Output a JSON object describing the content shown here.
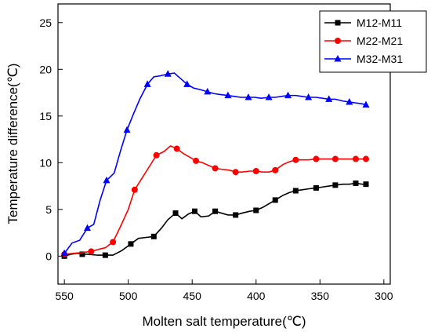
{
  "chart_data": {
    "type": "line",
    "title": "",
    "xlabel": "Molten salt temperature(℃)",
    "ylabel": "Temperature difference(℃)",
    "xlim": [
      555,
      295
    ],
    "ylim": [
      -3,
      27
    ],
    "x_reversed": true,
    "x_ticks": [
      550,
      500,
      450,
      400,
      350,
      300
    ],
    "y_ticks": [
      0,
      5,
      10,
      15,
      20,
      25
    ],
    "grid": false,
    "legend_position": "top-right",
    "series": [
      {
        "name": "M12-M11",
        "color": "#000000",
        "marker": "square",
        "x": [
          550,
          545,
          540,
          536,
          532,
          524,
          518,
          512,
          505,
          498,
          492,
          486,
          480,
          474,
          469,
          463,
          458,
          453,
          448,
          443,
          437,
          432,
          427,
          422,
          416,
          411,
          405,
          400,
          395,
          390,
          385,
          379,
          374,
          369,
          364,
          359,
          353,
          348,
          343,
          338,
          332,
          327,
          322,
          317,
          314
        ],
        "y": [
          0.0,
          0.2,
          0.3,
          0.2,
          0.2,
          0.1,
          0.1,
          0.1,
          0.6,
          1.3,
          1.9,
          2.0,
          2.1,
          3.0,
          3.9,
          4.6,
          4.0,
          4.5,
          4.8,
          4.2,
          4.3,
          4.8,
          4.6,
          4.4,
          4.4,
          4.6,
          4.8,
          4.9,
          5.2,
          5.6,
          6.0,
          6.5,
          6.8,
          7.0,
          7.1,
          7.2,
          7.3,
          7.4,
          7.5,
          7.6,
          7.7,
          7.7,
          7.8,
          7.7,
          7.7
        ]
      },
      {
        "name": "M22-M21",
        "color": "#ff0000",
        "marker": "circle",
        "x": [
          550,
          542,
          535,
          529,
          524,
          518,
          512,
          506,
          500,
          495,
          489,
          483,
          478,
          472,
          467,
          462,
          457,
          452,
          447,
          442,
          437,
          432,
          427,
          421,
          416,
          411,
          405,
          400,
          395,
          390,
          385,
          379,
          374,
          369,
          364,
          359,
          353,
          348,
          343,
          338,
          332,
          327,
          322,
          317,
          314
        ],
        "y": [
          0.2,
          0.3,
          0.4,
          0.5,
          0.7,
          0.9,
          1.5,
          3.2,
          5.0,
          7.1,
          8.4,
          9.7,
          10.8,
          11.2,
          11.8,
          11.5,
          11.0,
          10.6,
          10.2,
          10.0,
          9.7,
          9.4,
          9.3,
          9.2,
          9.0,
          9.0,
          9.1,
          9.1,
          9.0,
          9.0,
          9.2,
          9.8,
          10.1,
          10.3,
          10.3,
          10.3,
          10.4,
          10.4,
          10.4,
          10.4,
          10.4,
          10.4,
          10.4,
          10.4,
          10.4
        ]
      },
      {
        "name": "M32-M31",
        "color": "#0000ff",
        "marker": "triangle",
        "x": [
          550,
          544,
          538,
          532,
          527,
          522,
          517,
          511,
          506,
          501,
          496,
          491,
          485,
          480,
          475,
          469,
          464,
          459,
          454,
          449,
          443,
          438,
          433,
          428,
          422,
          417,
          412,
          406,
          401,
          396,
          390,
          385,
          380,
          375,
          369,
          364,
          359,
          353,
          348,
          343,
          338,
          332,
          327,
          322,
          317,
          314
        ],
        "y": [
          0.3,
          1.4,
          1.7,
          3.0,
          3.4,
          6.0,
          8.1,
          8.9,
          11.3,
          13.5,
          15.2,
          16.8,
          18.4,
          19.2,
          19.3,
          19.5,
          19.6,
          19.0,
          18.4,
          18.0,
          17.8,
          17.6,
          17.4,
          17.3,
          17.2,
          17.1,
          17.0,
          17.0,
          17.0,
          16.9,
          17.0,
          17.0,
          17.1,
          17.2,
          17.2,
          17.1,
          17.0,
          17.0,
          16.9,
          16.8,
          16.8,
          16.6,
          16.5,
          16.4,
          16.3,
          16.2
        ]
      }
    ]
  }
}
